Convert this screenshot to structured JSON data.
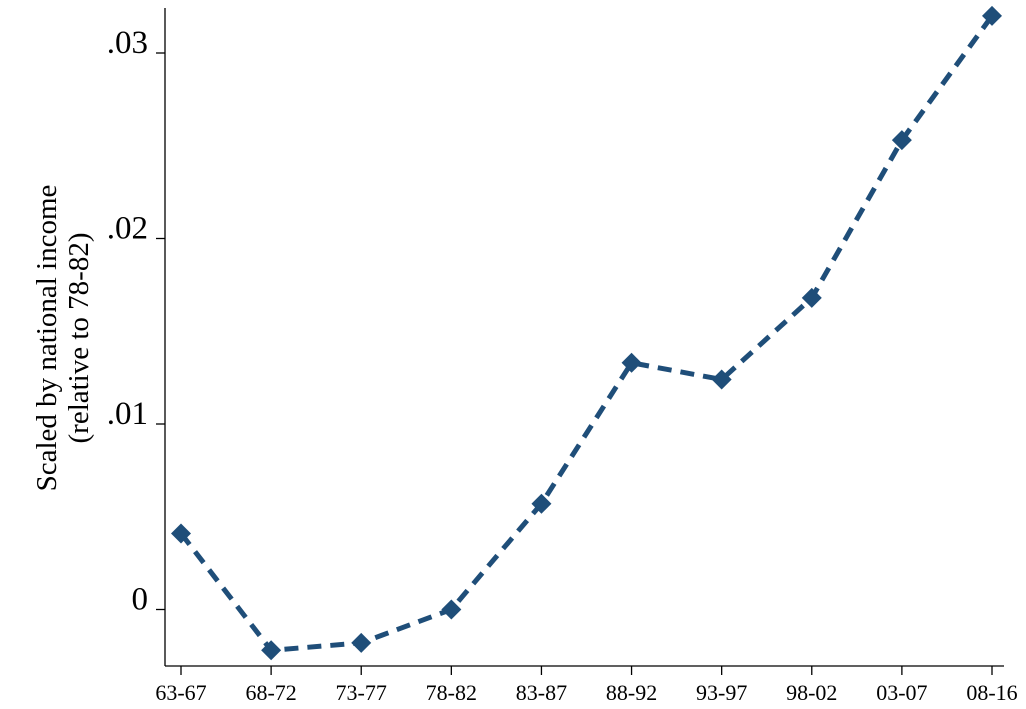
{
  "chart_data": {
    "type": "line",
    "title": "",
    "xlabel": "",
    "ylabel_lines": [
      "Scaled by national income",
      "(relative to 78-82)"
    ],
    "categories": [
      "63-67",
      "68-72",
      "73-77",
      "78-82",
      "83-87",
      "88-92",
      "93-97",
      "98-02",
      "03-07",
      "08-16"
    ],
    "series": [
      {
        "values": [
          0.0041,
          -0.0022,
          -0.0018,
          0.0,
          0.0057,
          0.0133,
          0.0124,
          0.0168,
          0.0253,
          0.032
        ]
      }
    ],
    "yticks": [
      0,
      0.01,
      0.02,
      0.03
    ],
    "ytick_labels": [
      "0",
      ".01",
      ".02",
      ".03"
    ],
    "ylim": [
      -0.0029,
      0.0328
    ],
    "grid": false,
    "line_style": "dashed",
    "marker": "diamond",
    "colors": {
      "series": "#1f4e79",
      "axis": "#000000",
      "background": "#ffffff"
    }
  }
}
